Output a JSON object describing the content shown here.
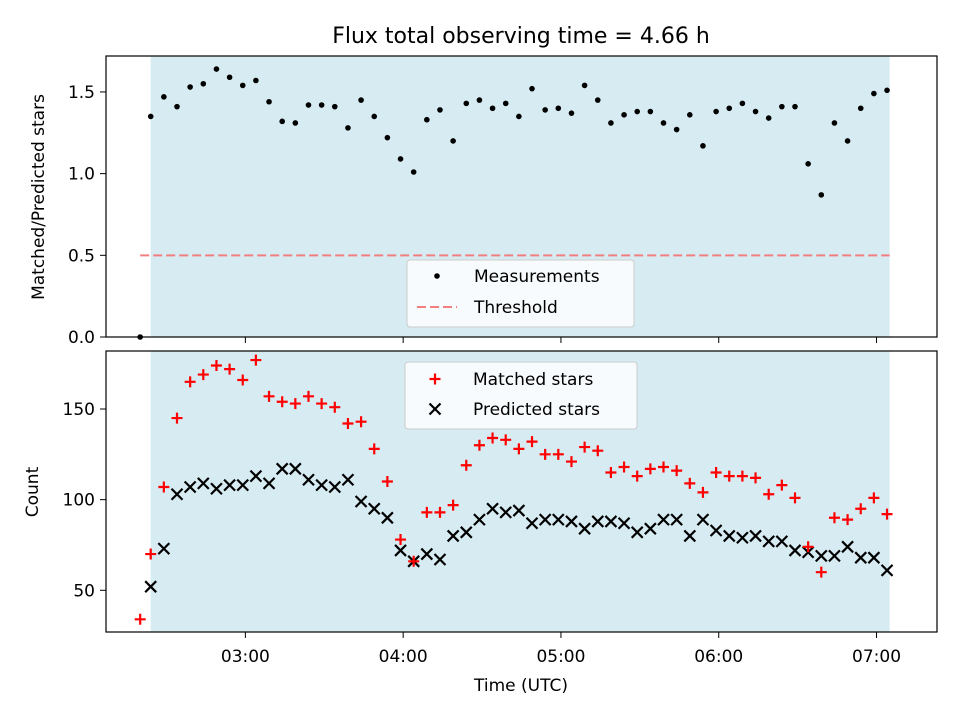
{
  "title": "Flux total observing time = 4.66 h",
  "colors": {
    "shade": "#add8e6",
    "measurement": "#000000",
    "threshold": "#f08080",
    "matched": "#ff0000",
    "predicted": "#000000"
  },
  "chart_data": [
    {
      "type": "scatter",
      "panel": "top",
      "title": "Flux total observing time = 4.66 h",
      "xlabel": "",
      "ylabel": "Matched/Predicted stars",
      "xlim": [
        "02:07",
        "07:23"
      ],
      "ylim": [
        0,
        1.72
      ],
      "yticks": [
        "0.0",
        "0.5",
        "1.0",
        "1.5"
      ],
      "shaded_span": [
        "02:24",
        "07:05"
      ],
      "legend_position": "lower center",
      "series": [
        {
          "name": "Measurements",
          "x": [
            "02:20",
            "02:24",
            "02:29",
            "02:34",
            "02:39",
            "02:44",
            "02:49",
            "02:54",
            "02:59",
            "03:04",
            "03:09",
            "03:14",
            "03:19",
            "03:24",
            "03:29",
            "03:34",
            "03:39",
            "03:44",
            "03:49",
            "03:54",
            "03:59",
            "04:04",
            "04:09",
            "04:14",
            "04:19",
            "04:24",
            "04:29",
            "04:34",
            "04:39",
            "04:44",
            "04:49",
            "04:54",
            "04:59",
            "05:04",
            "05:09",
            "05:14",
            "05:19",
            "05:24",
            "05:29",
            "05:34",
            "05:39",
            "05:44",
            "05:49",
            "05:54",
            "05:59",
            "06:04",
            "06:09",
            "06:14",
            "06:19",
            "06:24",
            "06:29",
            "06:34",
            "06:39",
            "06:44",
            "06:49",
            "06:54",
            "06:59",
            "07:04"
          ],
          "y": [
            0.0,
            1.35,
            1.47,
            1.41,
            1.53,
            1.55,
            1.64,
            1.59,
            1.54,
            1.57,
            1.44,
            1.32,
            1.31,
            1.42,
            1.42,
            1.41,
            1.28,
            1.45,
            1.35,
            1.22,
            1.09,
            1.01,
            1.33,
            1.39,
            1.2,
            1.43,
            1.45,
            1.4,
            1.43,
            1.35,
            1.52,
            1.39,
            1.4,
            1.37,
            1.54,
            1.45,
            1.31,
            1.36,
            1.38,
            1.38,
            1.31,
            1.27,
            1.36,
            1.17,
            1.38,
            1.4,
            1.43,
            1.38,
            1.34,
            1.41,
            1.41,
            1.06,
            0.87,
            1.31,
            1.2,
            1.4,
            1.49,
            1.51
          ]
        },
        {
          "name": "Threshold",
          "x": [
            "02:20",
            "07:05"
          ],
          "y": [
            0.5,
            0.5
          ]
        }
      ]
    },
    {
      "type": "scatter",
      "panel": "bottom",
      "xlabel": "Time (UTC)",
      "ylabel": "Count",
      "xlim": [
        "02:07",
        "07:23"
      ],
      "ylim": [
        27,
        182
      ],
      "xticks": [
        "03:00",
        "04:00",
        "05:00",
        "06:00",
        "07:00"
      ],
      "yticks": [
        "50",
        "100",
        "150"
      ],
      "shaded_span": [
        "02:24",
        "07:05"
      ],
      "legend_position": "upper center",
      "series": [
        {
          "name": "Matched stars",
          "x": [
            "02:20",
            "02:24",
            "02:29",
            "02:34",
            "02:39",
            "02:44",
            "02:49",
            "02:54",
            "02:59",
            "03:04",
            "03:09",
            "03:14",
            "03:19",
            "03:24",
            "03:29",
            "03:34",
            "03:39",
            "03:44",
            "03:49",
            "03:54",
            "03:59",
            "04:04",
            "04:09",
            "04:14",
            "04:19",
            "04:24",
            "04:29",
            "04:34",
            "04:39",
            "04:44",
            "04:49",
            "04:54",
            "04:59",
            "05:04",
            "05:09",
            "05:14",
            "05:19",
            "05:24",
            "05:29",
            "05:34",
            "05:39",
            "05:44",
            "05:49",
            "05:54",
            "05:59",
            "06:04",
            "06:09",
            "06:14",
            "06:19",
            "06:24",
            "06:29",
            "06:34",
            "06:39",
            "06:44",
            "06:49",
            "06:54",
            "06:59",
            "07:04"
          ],
          "y": [
            34,
            70,
            107,
            145,
            165,
            169,
            174,
            172,
            166,
            177,
            157,
            154,
            153,
            157,
            153,
            151,
            142,
            143,
            128,
            110,
            78,
            66,
            93,
            93,
            97,
            119,
            130,
            134,
            133,
            128,
            132,
            125,
            125,
            121,
            129,
            127,
            115,
            118,
            113,
            117,
            118,
            116,
            109,
            104,
            115,
            113,
            113,
            112,
            103,
            108,
            101,
            74,
            60,
            90,
            89,
            95,
            101,
            92
          ]
        },
        {
          "name": "Predicted stars",
          "x": [
            "02:24",
            "02:29",
            "02:34",
            "02:39",
            "02:44",
            "02:49",
            "02:54",
            "02:59",
            "03:04",
            "03:09",
            "03:14",
            "03:19",
            "03:24",
            "03:29",
            "03:34",
            "03:39",
            "03:44",
            "03:49",
            "03:54",
            "03:59",
            "04:04",
            "04:09",
            "04:14",
            "04:19",
            "04:24",
            "04:29",
            "04:34",
            "04:39",
            "04:44",
            "04:49",
            "04:54",
            "04:59",
            "05:04",
            "05:09",
            "05:14",
            "05:19",
            "05:24",
            "05:29",
            "05:34",
            "05:39",
            "05:44",
            "05:49",
            "05:54",
            "05:59",
            "06:04",
            "06:09",
            "06:14",
            "06:19",
            "06:24",
            "06:29",
            "06:34",
            "06:39",
            "06:44",
            "06:49",
            "06:54",
            "06:59",
            "07:04"
          ],
          "y": [
            52,
            73,
            103,
            107,
            109,
            106,
            108,
            108,
            113,
            109,
            117,
            117,
            111,
            108,
            107,
            111,
            99,
            95,
            90,
            72,
            66,
            70,
            67,
            80,
            82,
            89,
            95,
            93,
            94,
            87,
            89,
            89,
            88,
            84,
            88,
            88,
            87,
            82,
            84,
            89,
            89,
            80,
            89,
            83,
            80,
            79,
            80,
            77,
            77,
            72,
            71,
            69,
            69,
            74,
            68,
            68,
            61
          ]
        }
      ]
    }
  ]
}
